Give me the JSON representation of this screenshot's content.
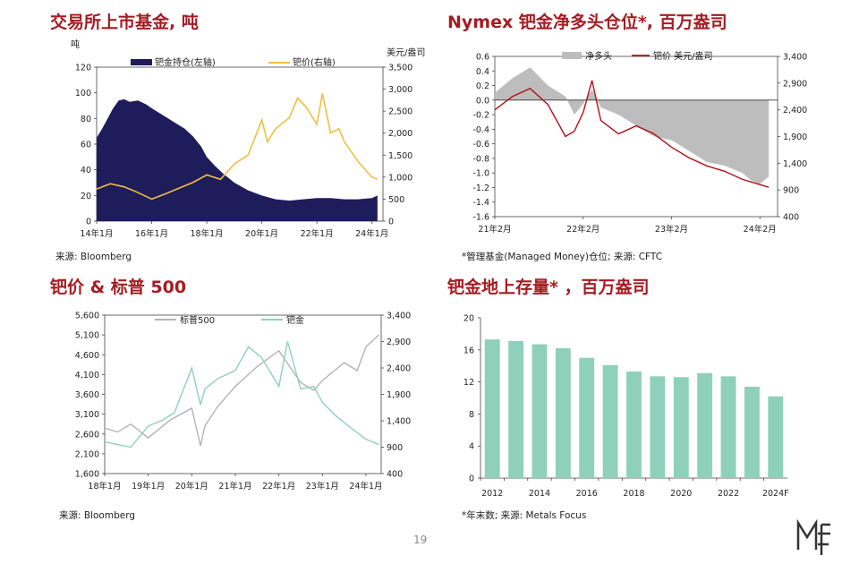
{
  "page_number": "19",
  "logo_text": "MF",
  "chart_data": [
    {
      "id": "etf",
      "type": "area",
      "title": "交易所上市基金, 吨",
      "source": "来源: Bloomberg",
      "left_unit": "吨",
      "right_unit": "美元/盎司",
      "x_ticks": [
        "14年1月",
        "16年1月",
        "18年1月",
        "20年1月",
        "22年1月",
        "24年1月"
      ],
      "y_left_ticks": [
        "0",
        "20",
        "40",
        "60",
        "80",
        "100",
        "120"
      ],
      "y_right_ticks": [
        "0",
        "500",
        "1,000",
        "1,500",
        "2,000",
        "2,500",
        "3,000",
        "3,500"
      ],
      "ylim_left": [
        0,
        120
      ],
      "ylim_right": [
        0,
        3500
      ],
      "series": [
        {
          "name": "钯金持仓(左轴)",
          "type": "area",
          "axis": "left",
          "color": "#1f1c5c",
          "x": [
            2014.0,
            2014.2,
            2014.4,
            2014.6,
            2014.8,
            2015.0,
            2015.2,
            2015.5,
            2015.8,
            2016.0,
            2016.3,
            2016.6,
            2016.9,
            2017.2,
            2017.5,
            2017.8,
            2018.0,
            2018.3,
            2018.6,
            2019.0,
            2019.5,
            2020.0,
            2020.5,
            2021.0,
            2021.5,
            2022.0,
            2022.5,
            2023.0,
            2023.5,
            2024.0,
            2024.2
          ],
          "values": [
            65,
            72,
            80,
            88,
            94,
            95,
            93,
            94,
            91,
            88,
            84,
            80,
            76,
            72,
            66,
            58,
            50,
            43,
            37,
            30,
            24,
            20,
            17,
            16,
            17,
            18,
            18,
            17,
            17,
            18,
            20
          ]
        },
        {
          "name": "钯价(右轴)",
          "type": "line",
          "axis": "right",
          "color": "#f0bf3f",
          "x": [
            2014.0,
            2014.5,
            2015.0,
            2015.5,
            2016.0,
            2016.5,
            2017.0,
            2017.5,
            2018.0,
            2018.5,
            2019.0,
            2019.5,
            2020.0,
            2020.2,
            2020.5,
            2021.0,
            2021.3,
            2021.6,
            2022.0,
            2022.2,
            2022.5,
            2022.8,
            2023.0,
            2023.5,
            2024.0,
            2024.2
          ],
          "values": [
            730,
            850,
            780,
            650,
            500,
            620,
            750,
            880,
            1050,
            950,
            1300,
            1500,
            2300,
            1800,
            2100,
            2350,
            2800,
            2600,
            2200,
            2900,
            2000,
            2100,
            1800,
            1350,
            1000,
            950
          ]
        }
      ]
    },
    {
      "id": "nymex",
      "type": "area",
      "title": "Nymex 钯金净多头仓位*, 百万盎司",
      "source": "*管理基金(Managed Money)仓位;   来源: CFTC",
      "x_ticks": [
        "21年2月",
        "22年2月",
        "23年2月",
        "24年2月"
      ],
      "y_left_ticks": [
        "-1.6",
        "-1.4",
        "-1.2",
        "-1.0",
        "-0.8",
        "-0.6",
        "-0.4",
        "-0.2",
        "0.0",
        "0.2",
        "0.4",
        "0.6"
      ],
      "y_right_ticks": [
        "400",
        "900",
        "1,400",
        "1,900",
        "2,400",
        "2,900",
        "3,400"
      ],
      "ylim_left": [
        -1.6,
        0.6
      ],
      "ylim_right": [
        400,
        3400
      ],
      "series": [
        {
          "name": "净多头",
          "type": "area",
          "axis": "left",
          "color": "#bdbdbd",
          "x": [
            2021.1,
            2021.3,
            2021.5,
            2021.7,
            2021.9,
            2022.0,
            2022.1,
            2022.2,
            2022.3,
            2022.5,
            2022.7,
            2022.9,
            2023.1,
            2023.3,
            2023.5,
            2023.7,
            2023.9,
            2024.0,
            2024.1,
            2024.2
          ],
          "values": [
            0.1,
            0.3,
            0.45,
            0.2,
            0.05,
            -0.2,
            -0.05,
            0.15,
            -0.1,
            -0.2,
            -0.35,
            -0.5,
            -0.55,
            -0.7,
            -0.85,
            -0.9,
            -1.0,
            -1.1,
            -1.15,
            -1.05
          ]
        },
        {
          "name": "钯价 美元/盎司",
          "type": "line",
          "axis": "right",
          "color": "#b0111a",
          "x": [
            2021.1,
            2021.3,
            2021.5,
            2021.7,
            2021.9,
            2022.0,
            2022.1,
            2022.2,
            2022.3,
            2022.5,
            2022.7,
            2022.9,
            2023.1,
            2023.3,
            2023.5,
            2023.7,
            2023.9,
            2024.0,
            2024.1,
            2024.2
          ],
          "values": [
            2400,
            2650,
            2800,
            2500,
            1900,
            2000,
            2350,
            2950,
            2200,
            1950,
            2100,
            1950,
            1700,
            1500,
            1350,
            1250,
            1100,
            1050,
            1000,
            950
          ]
        }
      ]
    },
    {
      "id": "sp",
      "type": "line",
      "title": "钯价 & 标普 500",
      "source": "来源: Bloomberg",
      "x_ticks": [
        "18年1月",
        "19年1月",
        "20年1月",
        "21年1月",
        "22年1月",
        "23年1月",
        "24年1月"
      ],
      "y_left_ticks": [
        "1,600",
        "2,100",
        "2,600",
        "3,100",
        "3,600",
        "4,100",
        "4,600",
        "5,100",
        "5,600"
      ],
      "y_right_ticks": [
        "400",
        "900",
        "1,400",
        "1,900",
        "2,400",
        "2,900",
        "3,400"
      ],
      "ylim_left": [
        1600,
        5600
      ],
      "ylim_right": [
        400,
        3400
      ],
      "series": [
        {
          "name": "标普500",
          "axis": "left",
          "color": "#b3b3b3",
          "x": [
            2018.0,
            2018.3,
            2018.6,
            2019.0,
            2019.5,
            2020.0,
            2020.2,
            2020.3,
            2020.6,
            2021.0,
            2021.5,
            2022.0,
            2022.5,
            2022.8,
            2023.0,
            2023.5,
            2023.8,
            2024.0,
            2024.3
          ],
          "values": [
            2750,
            2650,
            2850,
            2500,
            2950,
            3250,
            2300,
            2800,
            3300,
            3800,
            4300,
            4700,
            3900,
            3700,
            3950,
            4400,
            4200,
            4800,
            5100
          ]
        },
        {
          "name": "钯金",
          "axis": "right",
          "color": "#8fd0bb",
          "x": [
            2018.0,
            2018.3,
            2018.6,
            2019.0,
            2019.3,
            2019.6,
            2020.0,
            2020.2,
            2020.3,
            2020.6,
            2021.0,
            2021.3,
            2021.6,
            2022.0,
            2022.2,
            2022.5,
            2022.8,
            2023.0,
            2023.3,
            2023.6,
            2024.0,
            2024.3
          ],
          "values": [
            1000,
            950,
            900,
            1300,
            1400,
            1550,
            2400,
            1700,
            2000,
            2200,
            2350,
            2800,
            2600,
            2050,
            2900,
            2000,
            2050,
            1750,
            1500,
            1300,
            1050,
            950
          ]
        }
      ]
    },
    {
      "id": "stock",
      "type": "bar",
      "title": "钯金地上存量* ，百万盎司",
      "source": "*年末数;   来源: Metals Focus",
      "categories": [
        "2012",
        "2013",
        "2014",
        "2015",
        "2016",
        "2017",
        "2018",
        "2019",
        "2020",
        "2021",
        "2022",
        "2023",
        "2024F"
      ],
      "x_tick_labels": [
        "2012",
        "2014",
        "2016",
        "2018",
        "2020",
        "2022",
        "2024F"
      ],
      "values": [
        17.3,
        17.1,
        16.7,
        16.2,
        15.0,
        14.1,
        13.3,
        12.7,
        12.6,
        13.1,
        12.7,
        11.4,
        10.2
      ],
      "y_ticks": [
        "0",
        "4",
        "8",
        "12",
        "16",
        "20"
      ],
      "ylim": [
        0,
        20
      ],
      "color": "#8fd0bb"
    }
  ]
}
